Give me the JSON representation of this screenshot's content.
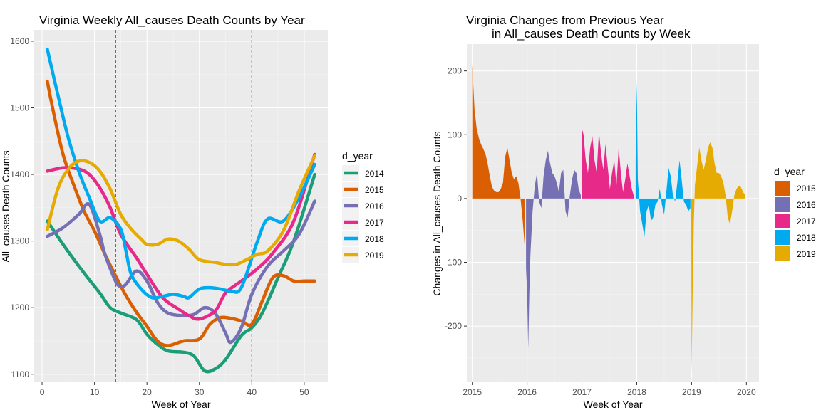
{
  "left": {
    "title": "Virginia Weekly All_causes Death Counts by Year",
    "xlabel": "Week of Year",
    "ylabel": "All_causes Death Counts",
    "legend_title": "d_year",
    "xticks": [
      0,
      10,
      20,
      30,
      40,
      50
    ],
    "yticks": [
      1100,
      1200,
      1300,
      1400,
      1500,
      1600
    ],
    "xlim": [
      -1.5,
      54.5
    ],
    "ylim": [
      1088,
      1617
    ],
    "vlines": [
      14,
      40
    ]
  },
  "right": {
    "title_line1": "Virginia Changes from Previous Year",
    "title_line2": "in All_causes Death Counts by Week",
    "xlabel": "Week of Year",
    "ylabel": "Changes in All_causes Death Counts",
    "legend_title": "d_year",
    "xticks": [
      2015,
      2016,
      2017,
      2018,
      2019,
      2020
    ],
    "yticks": [
      -200,
      -100,
      0,
      100,
      200
    ],
    "xlim": [
      2014.9,
      2020.23
    ],
    "ylim": [
      -288,
      242
    ]
  },
  "colors": {
    "2014": "#1b9e77",
    "2015": "#d95f02",
    "2016": "#7570b3",
    "2017": "#e7298a",
    "2018": "#00aaee",
    "2019": "#e6ab02"
  },
  "chart_data": [
    {
      "type": "line",
      "title": "Virginia Weekly All_causes Death Counts by Year",
      "xlabel": "Week of Year",
      "ylabel": "All_causes Death Counts",
      "xlim": [
        0,
        52
      ],
      "ylim": [
        1100,
        1600
      ],
      "legend": "right",
      "grid": true,
      "reference_lines_x": [
        14,
        40
      ],
      "series": [
        {
          "name": "2014",
          "x": [
            1,
            4,
            8,
            11,
            13,
            15,
            18,
            20,
            22,
            24,
            27,
            29,
            31,
            33,
            35,
            38,
            40,
            42,
            45,
            48,
            52
          ],
          "values": [
            1330,
            1295,
            1252,
            1222,
            1200,
            1192,
            1182,
            1160,
            1145,
            1135,
            1133,
            1127,
            1105,
            1108,
            1122,
            1158,
            1170,
            1192,
            1245,
            1300,
            1400
          ]
        },
        {
          "name": "2015",
          "x": [
            1,
            2,
            4,
            6,
            8,
            10,
            12,
            14,
            16,
            18,
            20,
            22,
            24,
            27,
            30,
            32,
            34,
            36,
            38,
            40,
            42,
            44,
            46,
            48,
            50,
            52
          ],
          "values": [
            1540,
            1500,
            1430,
            1385,
            1345,
            1315,
            1280,
            1248,
            1218,
            1193,
            1172,
            1150,
            1143,
            1150,
            1153,
            1175,
            1185,
            1184,
            1180,
            1175,
            1210,
            1245,
            1248,
            1240,
            1240,
            1240
          ]
        },
        {
          "name": "2016",
          "x": [
            1,
            4,
            7,
            9,
            11,
            12,
            14,
            15,
            16,
            18,
            20,
            22,
            24,
            27,
            29,
            31,
            33,
            35,
            36,
            38,
            40,
            43,
            46,
            49,
            52
          ],
          "values": [
            1307,
            1320,
            1340,
            1355,
            1310,
            1280,
            1240,
            1232,
            1235,
            1255,
            1240,
            1208,
            1192,
            1188,
            1190,
            1200,
            1192,
            1162,
            1148,
            1170,
            1220,
            1262,
            1285,
            1310,
            1360
          ]
        },
        {
          "name": "2017",
          "x": [
            1,
            4,
            7,
            9,
            11,
            13,
            15,
            18,
            20,
            23,
            26,
            28,
            30,
            33,
            35,
            38,
            41,
            44,
            48,
            52
          ],
          "values": [
            1405,
            1410,
            1408,
            1400,
            1380,
            1350,
            1310,
            1275,
            1250,
            1215,
            1198,
            1188,
            1183,
            1195,
            1222,
            1240,
            1258,
            1282,
            1330,
            1430
          ]
        },
        {
          "name": "2018",
          "x": [
            1,
            3,
            5,
            7,
            9,
            11,
            13,
            15,
            16,
            17,
            19,
            21,
            23,
            25,
            27,
            28,
            30,
            32,
            34,
            36,
            38,
            41,
            43,
            46,
            49,
            52
          ],
          "values": [
            1588,
            1520,
            1455,
            1405,
            1365,
            1330,
            1335,
            1318,
            1285,
            1250,
            1227,
            1215,
            1217,
            1220,
            1217,
            1215,
            1228,
            1230,
            1228,
            1225,
            1230,
            1298,
            1333,
            1330,
            1365,
            1415
          ]
        },
        {
          "name": "2019",
          "x": [
            1,
            3,
            5,
            7,
            9,
            11,
            13,
            15,
            17,
            19,
            20,
            22,
            24,
            26,
            28,
            30,
            33,
            35,
            37,
            39,
            41,
            43,
            46,
            49,
            52
          ],
          "values": [
            1317,
            1378,
            1408,
            1420,
            1418,
            1405,
            1378,
            1340,
            1318,
            1302,
            1295,
            1295,
            1303,
            1300,
            1288,
            1272,
            1268,
            1265,
            1265,
            1272,
            1280,
            1285,
            1315,
            1375,
            1428
          ]
        }
      ]
    },
    {
      "type": "area",
      "title": "Virginia Changes from Previous Year in All_causes Death Counts by Week",
      "xlabel": "Week of Year",
      "ylabel": "Changes in All_causes Death Counts",
      "xlim": [
        2015,
        2020
      ],
      "ylim": [
        -275,
        212
      ],
      "legend": "right",
      "grid": true,
      "series": [
        {
          "name": "2015",
          "x": [
            2015.0,
            2015.02,
            2015.04,
            2015.08,
            2015.12,
            2015.16,
            2015.2,
            2015.24,
            2015.28,
            2015.32,
            2015.36,
            2015.4,
            2015.44,
            2015.48,
            2015.52,
            2015.56,
            2015.6,
            2015.64,
            2015.68,
            2015.72,
            2015.76,
            2015.8,
            2015.84,
            2015.88,
            2015.92,
            2015.96
          ],
          "values": [
            210,
            175,
            140,
            110,
            95,
            85,
            78,
            70,
            55,
            35,
            18,
            12,
            10,
            10,
            15,
            25,
            65,
            80,
            60,
            40,
            30,
            35,
            25,
            0,
            -35,
            -80
          ]
        },
        {
          "name": "2016",
          "x": [
            2015.98,
            2016.0,
            2016.02,
            2016.04,
            2016.06,
            2016.1,
            2016.14,
            2016.18,
            2016.22,
            2016.26,
            2016.3,
            2016.34,
            2016.38,
            2016.42,
            2016.46,
            2016.5,
            2016.54,
            2016.58,
            2016.62,
            2016.66,
            2016.7,
            2016.74,
            2016.78,
            2016.82,
            2016.86,
            2016.9,
            2016.94,
            2016.98
          ],
          "values": [
            -110,
            -145,
            -235,
            -150,
            -90,
            -20,
            20,
            40,
            -5,
            -15,
            35,
            60,
            75,
            55,
            40,
            35,
            25,
            10,
            40,
            45,
            -20,
            -30,
            5,
            30,
            45,
            40,
            15,
            5
          ]
        },
        {
          "name": "2017",
          "x": [
            2017.0,
            2017.03,
            2017.07,
            2017.11,
            2017.15,
            2017.19,
            2017.23,
            2017.27,
            2017.31,
            2017.35,
            2017.39,
            2017.43,
            2017.47,
            2017.51,
            2017.55,
            2017.59,
            2017.63,
            2017.67,
            2017.71,
            2017.75,
            2017.79,
            2017.83,
            2017.87,
            2017.91,
            2017.96
          ],
          "values": [
            110,
            100,
            60,
            40,
            80,
            98,
            60,
            40,
            105,
            70,
            45,
            85,
            50,
            15,
            40,
            60,
            20,
            80,
            40,
            10,
            30,
            55,
            35,
            15,
            0
          ]
        },
        {
          "name": "2018",
          "x": [
            2017.98,
            2018.0,
            2018.02,
            2018.06,
            2018.1,
            2018.14,
            2018.18,
            2018.22,
            2018.26,
            2018.3,
            2018.34,
            2018.38,
            2018.42,
            2018.46,
            2018.5,
            2018.54,
            2018.58,
            2018.62,
            2018.66,
            2018.7,
            2018.74,
            2018.78,
            2018.82,
            2018.86,
            2018.9,
            2018.94,
            2018.98
          ],
          "values": [
            60,
            183,
            30,
            -20,
            -40,
            -60,
            -20,
            -10,
            -35,
            -30,
            -10,
            -5,
            15,
            -10,
            -25,
            10,
            48,
            35,
            5,
            -5,
            25,
            60,
            30,
            -5,
            -10,
            -20,
            -15
          ]
        },
        {
          "name": "2019",
          "x": [
            2018.995,
            2019.0,
            2019.02,
            2019.04,
            2019.06,
            2019.1,
            2019.14,
            2019.18,
            2019.22,
            2019.26,
            2019.3,
            2019.34,
            2019.38,
            2019.42,
            2019.46,
            2019.5,
            2019.54,
            2019.58,
            2019.62,
            2019.66,
            2019.7,
            2019.74,
            2019.78,
            2019.82,
            2019.86,
            2019.9,
            2019.94,
            2019.98
          ],
          "values": [
            -10,
            -275,
            -150,
            -40,
            20,
            50,
            80,
            60,
            45,
            60,
            80,
            88,
            80,
            55,
            40,
            40,
            35,
            25,
            5,
            -30,
            -40,
            -20,
            5,
            15,
            20,
            18,
            10,
            5
          ]
        }
      ]
    }
  ]
}
